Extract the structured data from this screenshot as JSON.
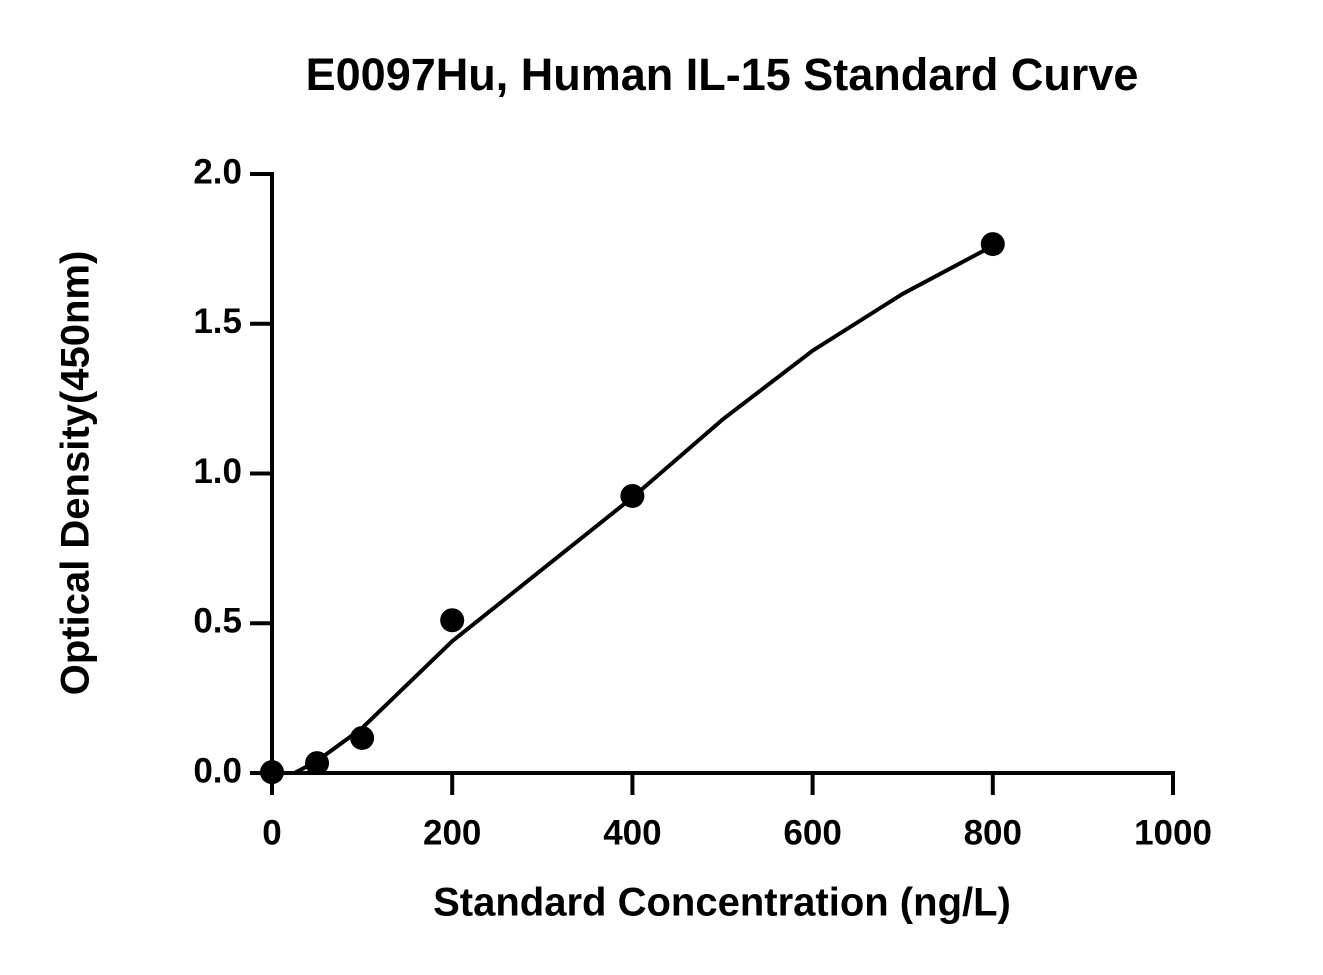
{
  "chart_data": {
    "type": "scatter",
    "title": "E0097Hu, Human IL-15 Standard Curve",
    "x_label": "Standard Concentration (ng/L)",
    "y_label": "Optical Density(450nm)",
    "x": [
      0,
      50,
      100,
      200,
      400,
      800
    ],
    "values": [
      0.003,
      0.033,
      0.117,
      0.51,
      0.925,
      1.766
    ],
    "color": "#000000",
    "curve": {
      "x": [
        0,
        25,
        50,
        100,
        200,
        300,
        400,
        500,
        600,
        700,
        800
      ],
      "y": [
        0,
        0,
        0.04,
        0.15,
        0.44,
        0.68,
        0.92,
        1.18,
        1.41,
        1.6,
        1.76
      ]
    },
    "xlim": [
      0,
      1000
    ],
    "xticks": [
      0,
      200,
      400,
      600,
      800,
      1000
    ],
    "ylim": [
      0,
      2
    ],
    "yticks": [
      {
        "value": 0,
        "label": "0.0"
      },
      {
        "value": 0.5,
        "label": "0.5"
      },
      {
        "value": 1,
        "label": "1.0"
      },
      {
        "value": 1.5,
        "label": "1.5"
      },
      {
        "value": 2,
        "label": "2.0"
      }
    ],
    "grid": false
  }
}
